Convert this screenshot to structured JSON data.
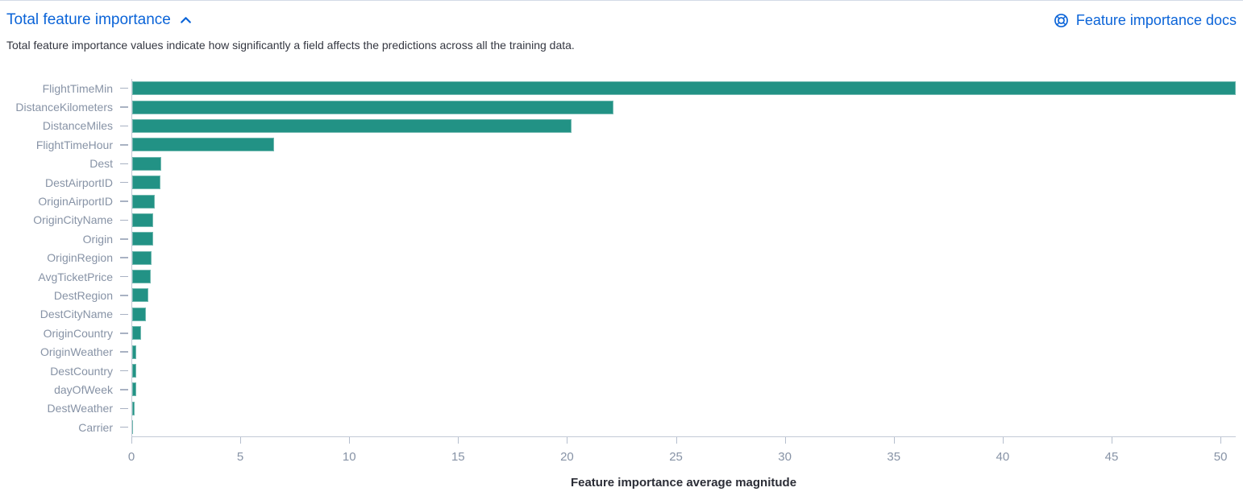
{
  "header": {
    "title": "Total feature importance",
    "docs_link": "Feature importance docs"
  },
  "subtitle": "Total feature importance values indicate how significantly a field affects the predictions across all the training data.",
  "icons": {
    "collapse": "chevron-up-icon",
    "docs": "help-lifering-icon"
  },
  "colors": {
    "bar": "#229285",
    "link_blue": "#0b64d8",
    "axis_label": "#8793a6",
    "axis_line": "#c3cad6",
    "text_dark": "#343741"
  },
  "chart_data": {
    "type": "bar",
    "orientation": "horizontal",
    "title": "Total feature importance",
    "xlabel": "Feature importance average magnitude",
    "ylabel": "",
    "grid": false,
    "legend": "none",
    "categories": [
      "FlightTimeMin",
      "DistanceKilometers",
      "DistanceMiles",
      "FlightTimeHour",
      "Dest",
      "DestAirportID",
      "OriginAirportID",
      "OriginCityName",
      "Origin",
      "OriginRegion",
      "AvgTicketPrice",
      "DestRegion",
      "DestCityName",
      "OriginCountry",
      "OriginWeather",
      "DestCountry",
      "dayOfWeek",
      "DestWeather",
      "Carrier"
    ],
    "values": [
      50.7,
      22.1,
      20.2,
      6.5,
      1.35,
      1.3,
      1.05,
      0.97,
      0.95,
      0.9,
      0.85,
      0.74,
      0.62,
      0.4,
      0.2,
      0.17,
      0.17,
      0.12,
      0.05
    ],
    "x_ticks": [
      0,
      5,
      10,
      15,
      20,
      25,
      30,
      35,
      40,
      45,
      50
    ],
    "xlim": [
      0,
      50.7
    ]
  }
}
